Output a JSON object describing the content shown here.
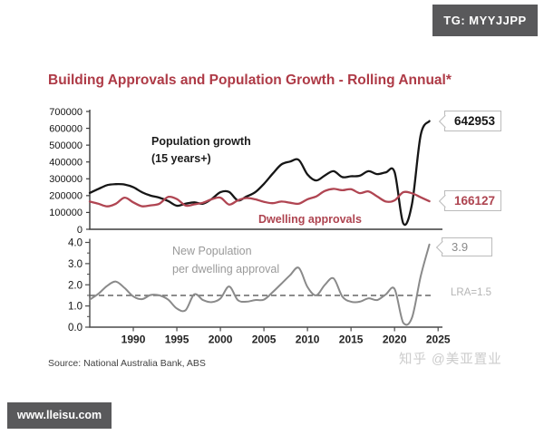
{
  "badges": {
    "tg": "TG: MYYJJPP",
    "site": "www.lleisu.com"
  },
  "title": "Building Approvals and Population Growth - Rolling Annual*",
  "source": "Source: National Australia Bank, ABS",
  "watermark": "知乎 @美亚置业",
  "colors": {
    "title": "#ae3a46",
    "population_line": "#161616",
    "dwelling_line": "#b04552",
    "ratio_line": "#8a8a8a",
    "badge_bg": "#59595b",
    "callout_border": "#bbbbbb",
    "reference_line": "#666666"
  },
  "chart_data": [
    {
      "type": "line",
      "panel": "top",
      "title": "",
      "xlabel": "",
      "ylabel": "",
      "xlim": [
        1985,
        2025.5
      ],
      "ylim": [
        0,
        700000
      ],
      "grid": false,
      "legend": "inline-labels",
      "yticks": [
        0,
        100000,
        200000,
        300000,
        400000,
        500000,
        600000,
        700000
      ],
      "x": [
        1985,
        1986,
        1987,
        1988,
        1989,
        1990,
        1991,
        1992,
        1993,
        1994,
        1995,
        1996,
        1997,
        1998,
        1999,
        2000,
        2001,
        2002,
        2003,
        2004,
        2005,
        2006,
        2007,
        2008,
        2009,
        2010,
        2011,
        2012,
        2013,
        2014,
        2015,
        2016,
        2017,
        2018,
        2019,
        2020,
        2021,
        2022,
        2023,
        2024
      ],
      "series": [
        {
          "name": "Population growth (15 years+)",
          "color": "#161616",
          "values": [
            216000,
            240000,
            262000,
            268000,
            266000,
            250000,
            220000,
            200000,
            188000,
            168000,
            140000,
            152000,
            160000,
            152000,
            180000,
            220000,
            222000,
            172000,
            195000,
            220000,
            270000,
            330000,
            385000,
            402000,
            412000,
            326000,
            290000,
            320000,
            345000,
            310000,
            315000,
            318000,
            345000,
            328000,
            338000,
            340000,
            35000,
            150000,
            560000,
            642953
          ]
        },
        {
          "name": "Dwelling approvals",
          "color": "#b04552",
          "values": [
            165000,
            152000,
            136000,
            152000,
            188000,
            160000,
            137000,
            142000,
            152000,
            192000,
            180000,
            141000,
            148000,
            158000,
            178000,
            188000,
            147000,
            172000,
            186000,
            178000,
            163000,
            155000,
            165000,
            158000,
            152000,
            178000,
            195000,
            228000,
            240000,
            232000,
            238000,
            215000,
            225000,
            195000,
            165000,
            172000,
            220000,
            214000,
            190000,
            166127
          ]
        }
      ],
      "end_labels": [
        {
          "series": "Population growth (15 years+)",
          "text": "642953"
        },
        {
          "series": "Dwelling approvals",
          "text": "166127"
        }
      ],
      "annotations": {
        "population_line1": "Population growth",
        "population_line2": "(15 years+)",
        "dwelling": "Dwelling approvals"
      }
    },
    {
      "type": "line",
      "panel": "bottom",
      "title": "",
      "xlabel": "",
      "ylabel": "",
      "xlim": [
        1985,
        2025.5
      ],
      "ylim": [
        0,
        4.0
      ],
      "grid": false,
      "legend": "inline-labels",
      "yticks": [
        0,
        1,
        2,
        3,
        4
      ],
      "ytick_labels": [
        "0.0",
        "1.0",
        "2.0",
        "3.0",
        "4.0"
      ],
      "xticks": [
        1990,
        1995,
        2000,
        2005,
        2010,
        2015,
        2020,
        2025
      ],
      "x": [
        1985,
        1986,
        1987,
        1988,
        1989,
        1990,
        1991,
        1992,
        1993,
        1994,
        1995,
        1996,
        1997,
        1998,
        1999,
        2000,
        2001,
        2002,
        2003,
        2004,
        2005,
        2006,
        2007,
        2008,
        2009,
        2010,
        2011,
        2012,
        2013,
        2014,
        2015,
        2016,
        2017,
        2018,
        2019,
        2020,
        2021,
        2022,
        2023,
        2024
      ],
      "series": [
        {
          "name": "New Population per dwelling approval",
          "color": "#8a8a8a",
          "values": [
            1.3,
            1.58,
            1.95,
            2.15,
            1.85,
            1.45,
            1.32,
            1.52,
            1.5,
            1.3,
            0.88,
            0.8,
            1.55,
            1.28,
            1.18,
            1.35,
            1.92,
            1.28,
            1.2,
            1.28,
            1.3,
            1.65,
            2.05,
            2.45,
            2.8,
            1.9,
            1.5,
            2.0,
            2.3,
            1.45,
            1.2,
            1.2,
            1.36,
            1.28,
            1.55,
            1.8,
            0.2,
            0.45,
            2.4,
            3.9
          ]
        }
      ],
      "reference_line": {
        "value": 1.5,
        "label": "LRA=1.5",
        "style": "dashed"
      },
      "end_label": "3.9",
      "annotations": {
        "label_line1": "New Population",
        "label_line2": "per dwelling approval"
      }
    }
  ]
}
